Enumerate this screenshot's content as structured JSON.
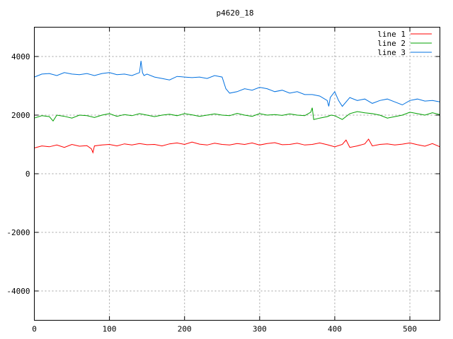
{
  "chart_data": {
    "type": "line",
    "title": "p4620_18",
    "xlabel": "",
    "ylabel": "",
    "xlim": [
      0,
      540
    ],
    "ylim": [
      -5000,
      5000
    ],
    "xticks": [
      0,
      100,
      200,
      300,
      400,
      500
    ],
    "yticks": [
      -4000,
      -2000,
      0,
      2000,
      4000
    ],
    "grid": true,
    "legend_position": "top-right",
    "series": [
      {
        "name": "line 1",
        "color": "#ff0000",
        "x": [
          0,
          10,
          20,
          30,
          40,
          50,
          60,
          70,
          76,
          78,
          80,
          90,
          100,
          110,
          120,
          130,
          140,
          150,
          160,
          170,
          180,
          190,
          200,
          210,
          220,
          230,
          240,
          250,
          260,
          270,
          280,
          290,
          300,
          310,
          320,
          330,
          340,
          350,
          360,
          370,
          380,
          390,
          400,
          410,
          415,
          420,
          430,
          440,
          445,
          450,
          460,
          470,
          480,
          490,
          500,
          510,
          520,
          530,
          540
        ],
        "y": [
          880,
          950,
          920,
          980,
          900,
          1000,
          940,
          960,
          850,
          720,
          950,
          980,
          1000,
          950,
          1020,
          980,
          1030,
          990,
          1000,
          950,
          1020,
          1050,
          1000,
          1080,
          1010,
          980,
          1040,
          1000,
          980,
          1030,
          1000,
          1050,
          980,
          1030,
          1060,
          990,
          1000,
          1040,
          980,
          1000,
          1050,
          990,
          920,
          1000,
          1150,
          900,
          950,
          1020,
          1180,
          950,
          1000,
          1020,
          980,
          1010,
          1050,
          990,
          940,
          1030,
          920
        ]
      },
      {
        "name": "line 2",
        "color": "#00a000",
        "x": [
          0,
          10,
          20,
          25,
          30,
          40,
          50,
          60,
          70,
          80,
          90,
          100,
          110,
          120,
          130,
          140,
          150,
          160,
          170,
          180,
          190,
          200,
          210,
          220,
          230,
          240,
          250,
          260,
          270,
          280,
          290,
          300,
          310,
          320,
          330,
          340,
          350,
          360,
          368,
          370,
          372,
          380,
          390,
          395,
          400,
          410,
          420,
          430,
          440,
          450,
          460,
          470,
          480,
          490,
          500,
          510,
          520,
          530,
          540
        ],
        "y": [
          1900,
          1980,
          1950,
          1800,
          2000,
          1960,
          1900,
          2000,
          1980,
          1920,
          2000,
          2050,
          1960,
          2020,
          1980,
          2050,
          2000,
          1950,
          2000,
          2030,
          1980,
          2050,
          2010,
          1960,
          2000,
          2040,
          2000,
          1980,
          2060,
          2000,
          1960,
          2050,
          2000,
          2020,
          1990,
          2040,
          2000,
          1980,
          2100,
          2250,
          1850,
          1900,
          1950,
          2000,
          1980,
          1850,
          2050,
          2120,
          2080,
          2050,
          2000,
          1900,
          1950,
          2000,
          2100,
          2050,
          2000,
          2080,
          2020
        ]
      },
      {
        "name": "line 3",
        "color": "#0070e0",
        "x": [
          0,
          10,
          20,
          30,
          40,
          50,
          60,
          70,
          80,
          90,
          100,
          110,
          120,
          130,
          140,
          142,
          144,
          146,
          150,
          160,
          170,
          180,
          190,
          200,
          210,
          220,
          230,
          240,
          250,
          255,
          260,
          270,
          280,
          290,
          300,
          310,
          320,
          330,
          340,
          350,
          360,
          370,
          380,
          390,
          392,
          394,
          400,
          405,
          410,
          420,
          430,
          440,
          450,
          460,
          470,
          480,
          490,
          500,
          510,
          520,
          530,
          540
        ],
        "y": [
          3300,
          3400,
          3420,
          3350,
          3450,
          3400,
          3380,
          3420,
          3350,
          3420,
          3450,
          3380,
          3400,
          3350,
          3450,
          3850,
          3450,
          3350,
          3400,
          3300,
          3250,
          3200,
          3320,
          3300,
          3280,
          3300,
          3250,
          3350,
          3300,
          2900,
          2750,
          2800,
          2900,
          2850,
          2950,
          2900,
          2800,
          2850,
          2750,
          2800,
          2700,
          2700,
          2650,
          2500,
          2300,
          2600,
          2800,
          2500,
          2300,
          2600,
          2500,
          2550,
          2400,
          2500,
          2550,
          2450,
          2350,
          2500,
          2550,
          2480,
          2500,
          2450
        ]
      }
    ]
  }
}
